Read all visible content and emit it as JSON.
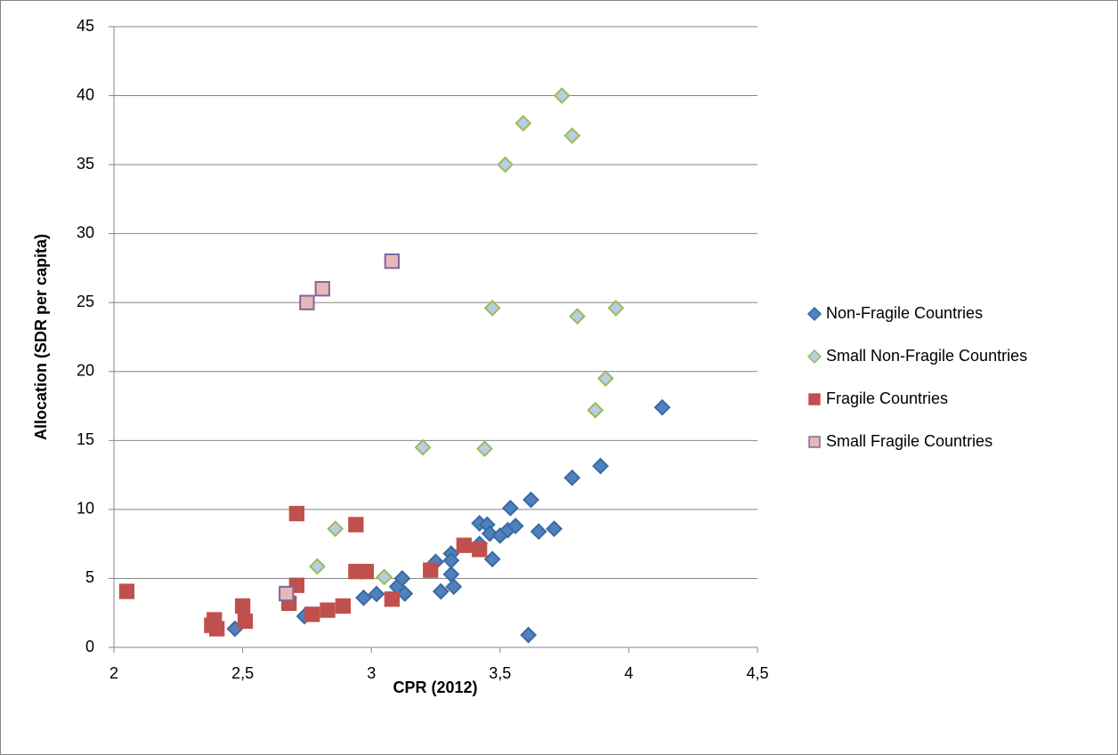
{
  "chart_data": {
    "type": "scatter",
    "xlabel": "CPR (2012)",
    "ylabel": "Allocation (SDR per capita)",
    "xlim": [
      2,
      4.5
    ],
    "xticks": [
      2,
      {
        "value": 2.5,
        "label": "2,5"
      },
      3,
      {
        "value": 3.5,
        "label": "3,5"
      },
      4,
      {
        "value": 4.5,
        "label": "4,5"
      }
    ],
    "ylim": [
      0,
      45
    ],
    "yticks": [
      0,
      5,
      10,
      15,
      20,
      25,
      30,
      35,
      40,
      45
    ],
    "grid": true,
    "legend": "right",
    "series": [
      {
        "name": "Non-Fragile Countries",
        "color": "#4f81bd",
        "stroke": "#3a6aa3",
        "marker": "diamond",
        "x": [
          2.47,
          2.74,
          2.97,
          3.02,
          3.1,
          3.12,
          3.13,
          3.25,
          3.27,
          3.31,
          3.31,
          3.31,
          3.32,
          3.42,
          3.45,
          3.46,
          3.47,
          3.42,
          3.5,
          3.53,
          3.56,
          3.54,
          3.62,
          3.61,
          3.65,
          3.71,
          3.78,
          3.89,
          4.13
        ],
        "values": [
          1.35,
          2.26,
          3.6,
          3.87,
          4.4,
          5.0,
          3.9,
          6.2,
          4.06,
          6.8,
          6.3,
          5.3,
          4.4,
          9.0,
          8.9,
          8.25,
          6.4,
          7.5,
          8.1,
          8.5,
          8.8,
          10.1,
          10.7,
          0.9,
          8.4,
          8.6,
          12.3,
          13.15,
          17.4
        ]
      },
      {
        "name": "Small Non-Fragile Countries",
        "color": "#b9cde5",
        "stroke": "#9bbb59",
        "marker": "diamond",
        "x": [
          2.79,
          2.86,
          3.05,
          3.2,
          3.44,
          3.47,
          3.52,
          3.59,
          3.74,
          3.78,
          3.8,
          3.87,
          3.91,
          3.95
        ],
        "values": [
          5.87,
          8.6,
          5.1,
          14.5,
          14.4,
          24.6,
          35.0,
          38.0,
          40.0,
          37.1,
          24.0,
          17.2,
          19.5,
          24.6
        ]
      },
      {
        "name": "Fragile Countries",
        "color": "#c0504d",
        "stroke": "#c0504d",
        "marker": "square",
        "x": [
          2.05,
          2.39,
          2.38,
          2.4,
          2.5,
          2.51,
          2.68,
          2.71,
          2.71,
          2.77,
          2.83,
          2.89,
          2.94,
          2.94,
          2.98,
          3.08,
          3.23,
          3.36,
          3.42
        ],
        "values": [
          4.06,
          2.0,
          1.6,
          1.35,
          3.0,
          1.9,
          3.2,
          4.5,
          9.7,
          2.4,
          2.7,
          3.0,
          8.9,
          5.5,
          5.5,
          3.5,
          5.6,
          7.4,
          7.1
        ]
      },
      {
        "name": "Small Fragile Countries",
        "color": "#e6b9b8",
        "stroke": "#8064a2",
        "marker": "square",
        "x": [
          2.67,
          2.75,
          2.81,
          3.08
        ],
        "values": [
          3.9,
          25.0,
          26.0,
          28.0
        ]
      }
    ]
  }
}
